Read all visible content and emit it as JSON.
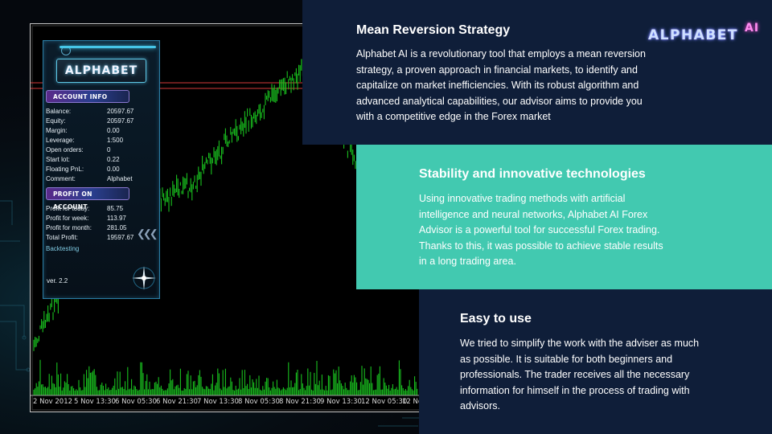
{
  "colors": {
    "navy": "#0f1e39",
    "teal": "#42c9b0",
    "candle": "#19c01f",
    "chart_bg": "#000000"
  },
  "chart_window": {
    "date_labels": [
      "2 Nov 2012",
      "5 Nov 13:30",
      "6 Nov 05:30",
      "6 Nov 21:30",
      "7 Nov 13:30",
      "8 Nov 05:30",
      "8 Nov 21:30",
      "9 Nov 13:30",
      "12 Nov 05:30",
      "12 No"
    ]
  },
  "ea_panel": {
    "logo": "ALPHABET",
    "account_header": "ACCOUNT INFO",
    "account_rows": [
      {
        "label": "Balance:",
        "value": "20597.67"
      },
      {
        "label": "Equity:",
        "value": "20597.67"
      },
      {
        "label": "Margin:",
        "value": "0.00"
      },
      {
        "label": "Leverage:",
        "value": "1:500"
      },
      {
        "label": "Open orders:",
        "value": "0"
      },
      {
        "label": "Start lot:",
        "value": "0.22"
      },
      {
        "label": "Floating PnL:",
        "value": "0.00"
      },
      {
        "label": "Comment:",
        "value": "Alphabet"
      }
    ],
    "profit_header": "PROFIT ON ACCOUNT",
    "profit_rows": [
      {
        "label": "Profit for today:",
        "value": "85.75"
      },
      {
        "label": "Profit for week:",
        "value": "113.97"
      },
      {
        "label": "Profit for month:",
        "value": "281.05"
      },
      {
        "label": "Total Profit:",
        "value": "19597.67"
      }
    ],
    "mode": "Backtesting",
    "version": "ver. 2.2"
  },
  "brand": {
    "main": "ALPHABET",
    "ai": "AI"
  },
  "sections": [
    {
      "title": "Mean Reversion Strategy",
      "lines": [
        "Alphabet AI is a revolutionary tool that employs a mean reversion",
        "strategy, a proven approach in financial markets, to identify and",
        "capitalize on market inefficiencies. With its robust algorithm and",
        "advanced analytical capabilities, our advisor aims to provide you",
        "with a competitive edge in the Forex market"
      ]
    },
    {
      "title": "Stability and innovative technologies",
      "lines": [
        "Using innovative trading methods with artificial",
        "intelligence and neural networks, Alphabet AI Forex",
        "Advisor is a powerful tool for successful Forex trading.",
        "Thanks to this, it was possible to achieve stable results",
        "in a long trading area."
      ]
    },
    {
      "title": "Easy to use",
      "lines": [
        "We tried to simplify the work with the adviser as much",
        "as possible. It is suitable for both beginners and",
        "professionals. The trader receives all the necessary",
        "information for himself in the process of trading with",
        "advisors."
      ]
    }
  ]
}
